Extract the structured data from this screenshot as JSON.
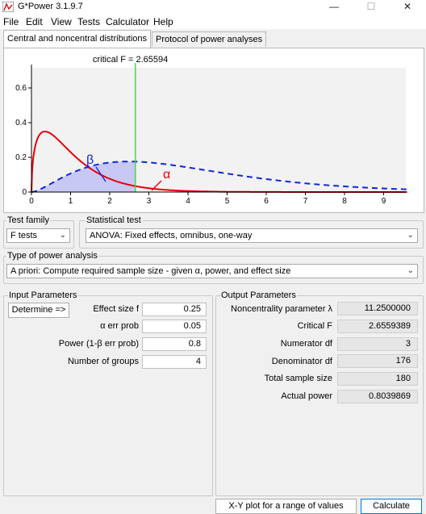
{
  "window": {
    "title": "G*Power 3.1.9.7",
    "minimize": "—",
    "maximize": "☐",
    "close": "✕"
  },
  "menu": [
    "File",
    "Edit",
    "View",
    "Tests",
    "Calculator",
    "Help"
  ],
  "tabs": [
    "Central and noncentral distributions",
    "Protocol of power analyses"
  ],
  "plot": {
    "critical_label": "critical F = 2.65594",
    "beta_symbol": "β",
    "alpha_symbol": "α",
    "x_ticks": [
      "0",
      "1",
      "2",
      "3",
      "4",
      "5",
      "6",
      "7",
      "8",
      "9"
    ],
    "y_ticks": [
      "0",
      "0.2",
      "0.4",
      "0.6"
    ],
    "colors": {
      "central": "#e8000b",
      "noncentral": "#1228d8",
      "critical": "#33dd33",
      "beta_fill": "#c8c8f4"
    }
  },
  "test_family": {
    "label": "Test family",
    "value": "F tests"
  },
  "statistical_test": {
    "label": "Statistical test",
    "value": "ANOVA: Fixed effects, omnibus, one-way"
  },
  "power_type": {
    "label": "Type of power analysis",
    "value": "A priori: Compute required sample size - given α, power, and effect size"
  },
  "input": {
    "title": "Input Parameters",
    "determine_button": "Determine =>",
    "fields": [
      {
        "label": "Effect size f",
        "value": "0.25"
      },
      {
        "label": "α err prob",
        "value": "0.05"
      },
      {
        "label": "Power (1-β err prob)",
        "value": "0.8"
      },
      {
        "label": "Number of groups",
        "value": "4"
      }
    ]
  },
  "output": {
    "title": "Output Parameters",
    "fields": [
      {
        "label": "Noncentrality parameter λ",
        "value": "11.2500000"
      },
      {
        "label": "Critical F",
        "value": "2.6559389"
      },
      {
        "label": "Numerator df",
        "value": "3"
      },
      {
        "label": "Denominator df",
        "value": "176"
      },
      {
        "label": "Total sample size",
        "value": "180"
      },
      {
        "label": "Actual power",
        "value": "0.8039869"
      }
    ]
  },
  "buttons": {
    "xy_plot": "X-Y plot for a range of values",
    "calculate": "Calculate"
  }
}
